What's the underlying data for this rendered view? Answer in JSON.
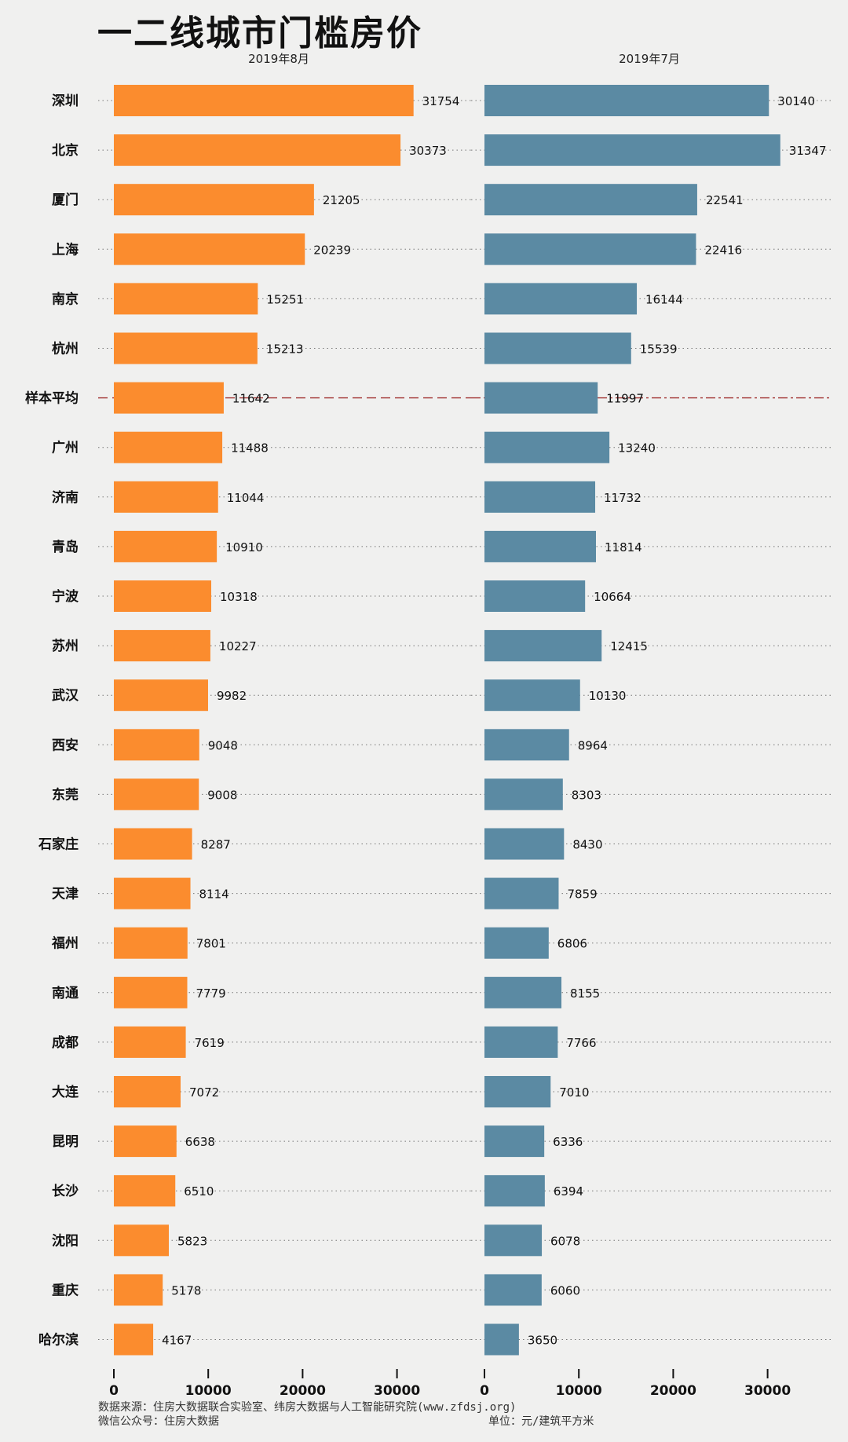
{
  "title": "一二线城市门槛房价",
  "chart_data": [
    {
      "type": "bar",
      "orientation": "horizontal",
      "title": "2019年8月",
      "color": "#fb8c2e",
      "categories": [
        "深圳",
        "北京",
        "厦门",
        "上海",
        "南京",
        "杭州",
        "样本平均",
        "广州",
        "济南",
        "青岛",
        "宁波",
        "苏州",
        "武汉",
        "西安",
        "东莞",
        "石家庄",
        "天津",
        "福州",
        "南通",
        "成都",
        "大连",
        "昆明",
        "长沙",
        "沈阳",
        "重庆",
        "哈尔滨"
      ],
      "values": [
        31754,
        30373,
        21205,
        20239,
        15251,
        15213,
        11642,
        11488,
        11044,
        10910,
        10318,
        10227,
        9982,
        9048,
        9008,
        8287,
        8114,
        7801,
        7779,
        7619,
        7072,
        6638,
        6510,
        5823,
        5178,
        4167
      ],
      "xlim": [
        0,
        37000
      ],
      "xticks": [
        0,
        10000,
        20000,
        30000
      ],
      "grid": "dotted row guides"
    },
    {
      "type": "bar",
      "orientation": "horizontal",
      "title": "2019年7月",
      "color": "#5b8aa3",
      "categories": [
        "深圳",
        "北京",
        "厦门",
        "上海",
        "南京",
        "杭州",
        "样本平均",
        "广州",
        "济南",
        "青岛",
        "宁波",
        "苏州",
        "武汉",
        "西安",
        "东莞",
        "石家庄",
        "天津",
        "福州",
        "南通",
        "成都",
        "大连",
        "昆明",
        "长沙",
        "沈阳",
        "重庆",
        "哈尔滨"
      ],
      "values": [
        30140,
        31347,
        22541,
        22416,
        16144,
        15539,
        11997,
        13240,
        11732,
        11814,
        10664,
        12415,
        10130,
        8964,
        8303,
        8430,
        7859,
        6806,
        8155,
        7766,
        7010,
        6336,
        6394,
        6078,
        6060,
        3650
      ],
      "xlim": [
        0,
        37000
      ],
      "xticks": [
        0,
        10000,
        20000,
        30000
      ],
      "grid": "dotted row guides"
    }
  ],
  "average_category": "样本平均",
  "footer": {
    "source": "数据来源：住房大数据联合实验室、纬房大数据与人工智能研究院(www.zfdsj.org)",
    "wechat": "微信公众号：住房大数据",
    "unit": "单位：元/建筑平方米"
  },
  "colors": {
    "background": "#f0f0ef",
    "average_line": "#a03030"
  }
}
